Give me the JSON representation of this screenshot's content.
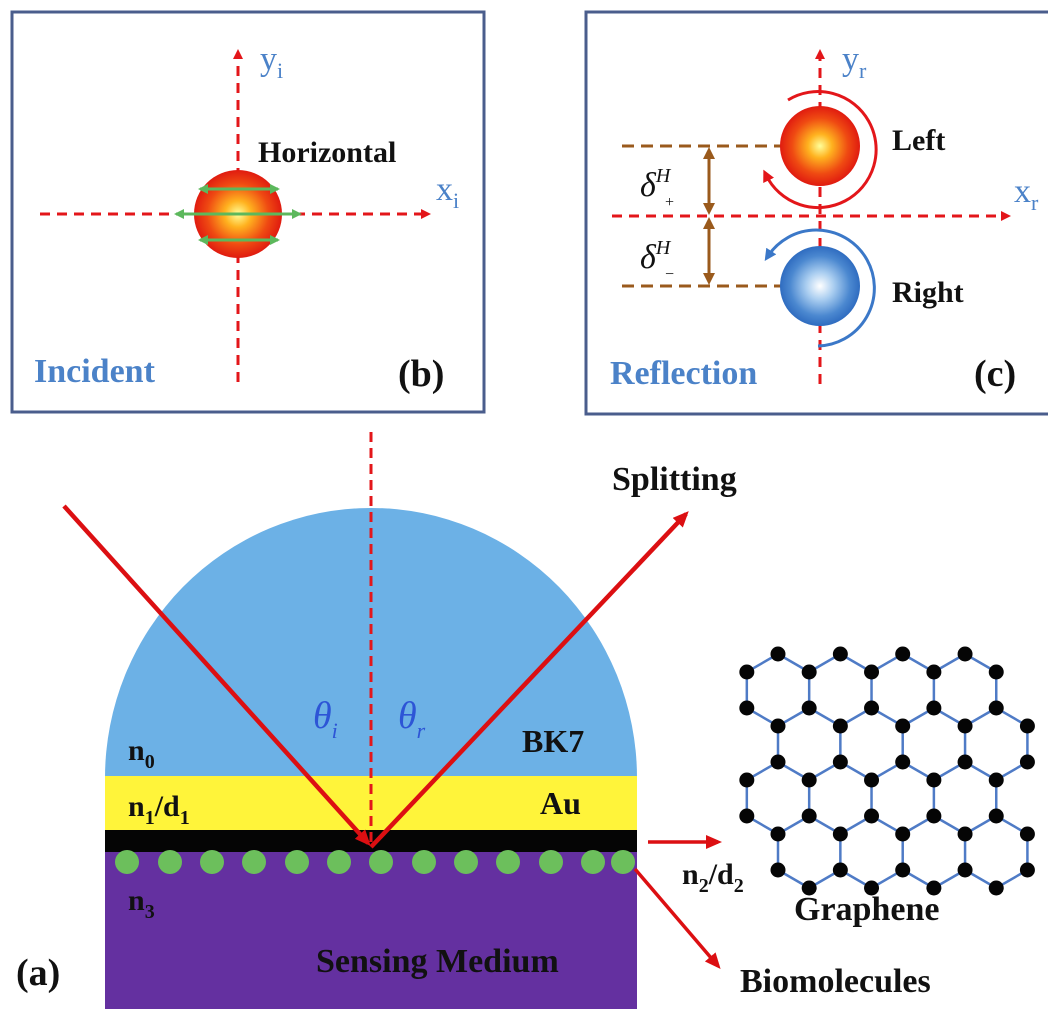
{
  "colors": {
    "axis_red": "#e3161a",
    "ray_red": "#dc0f12",
    "label_blue": "#4b82c8",
    "panel_border": "#4a5d8c",
    "prism_blue": "#6cb1e6",
    "gold": "#fff43a",
    "graphene_black": "#050505",
    "medium_purple": "#6430a0",
    "biomolecule_green": "#6cbf5c",
    "shift_brown": "#9a5a1c",
    "lattice_blue": "#4f7bc6",
    "arrow_green": "#5cb85c"
  },
  "panel_b": {
    "axis_y_label": "y",
    "axis_y_sub": "i",
    "axis_x_label": "x",
    "axis_x_sub": "i",
    "polarization_label": "Horizontal",
    "corner_label": "Incident",
    "panel_tag": "(b)"
  },
  "panel_c": {
    "axis_y_label": "y",
    "axis_y_sub": "r",
    "axis_x_label": "x",
    "axis_x_sub": "r",
    "left_label": "Left",
    "right_label": "Right",
    "shift_symbol": "δ",
    "shift_sup": "H",
    "shift_plus_sub": "+",
    "shift_minus_sub": "−",
    "corner_label": "Reflection",
    "panel_tag": "(c)"
  },
  "panel_a": {
    "splitting_label": "Splitting",
    "theta_symbol": "θ",
    "theta_i_sub": "i",
    "theta_r_sub": "r",
    "n0_main": "n",
    "n0_sub": "0",
    "n1_main_a": "n",
    "n1_sub_a": "1",
    "n1_sep": "/d",
    "n1_sub_b": "1",
    "bk7_label": "BK7",
    "au_label": "Au",
    "n3_main": "n",
    "n3_sub": "3",
    "medium_label": "Sensing Medium",
    "panel_tag": "(a)",
    "n2_main": "n",
    "n2_sub": "2",
    "n2_sep": "/d",
    "n2_sub_b": "2",
    "graphene_label": "Graphene",
    "biomolecules_label": "Biomolecules"
  }
}
